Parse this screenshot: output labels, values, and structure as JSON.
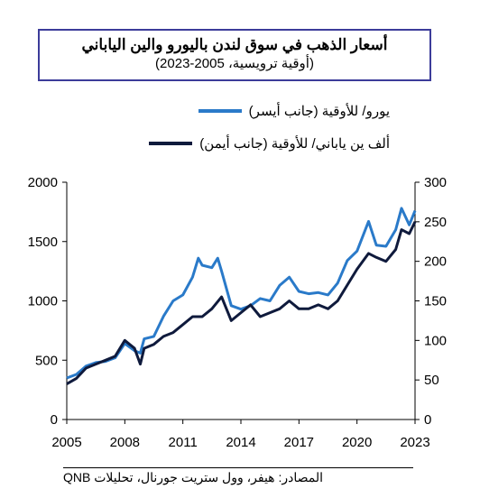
{
  "chart_data": {
    "type": "line",
    "title": "أسعار الذهب في سوق لندن باليورو والين الياباني",
    "subtitle": "(أوقية ترويسية، 2005-2023)",
    "x_ticks": [
      "2005",
      "2008",
      "2011",
      "2014",
      "2017",
      "2020",
      "2023"
    ],
    "xlim": [
      2005,
      2023
    ],
    "y_left": {
      "ticks": [
        0,
        500,
        1000,
        1500,
        2000
      ],
      "ylim": [
        0,
        2000
      ]
    },
    "y_right": {
      "ticks": [
        0,
        50,
        100,
        150,
        200,
        250,
        300
      ],
      "ylim": [
        0,
        300
      ]
    },
    "grid": false,
    "legend_position": "top",
    "series": [
      {
        "name": "يورو/ للأوقية (جانب أيسر)",
        "axis": "left",
        "color": "#2a7ac9",
        "x": [
          2005,
          2005.5,
          2006,
          2006.5,
          2007,
          2007.5,
          2008,
          2008.5,
          2008.8,
          2009,
          2009.5,
          2010,
          2010.5,
          2011,
          2011.5,
          2011.8,
          2012,
          2012.5,
          2012.8,
          2013,
          2013.5,
          2014,
          2014.5,
          2015,
          2015.5,
          2016,
          2016.5,
          2017,
          2017.5,
          2018,
          2018.5,
          2019,
          2019.5,
          2020,
          2020.6,
          2021,
          2021.5,
          2022,
          2022.3,
          2022.7,
          2023
        ],
        "y": [
          350,
          380,
          450,
          480,
          490,
          520,
          640,
          580,
          560,
          680,
          700,
          870,
          1000,
          1050,
          1200,
          1360,
          1300,
          1280,
          1360,
          1250,
          960,
          930,
          960,
          1020,
          1000,
          1130,
          1200,
          1080,
          1060,
          1070,
          1050,
          1150,
          1340,
          1420,
          1670,
          1470,
          1460,
          1600,
          1780,
          1640,
          1760
        ]
      },
      {
        "name": "ألف ين ياباني/ للأوقية (جانب أيمن)",
        "axis": "right",
        "color": "#0f1a3c",
        "x": [
          2005,
          2005.5,
          2006,
          2006.5,
          2007,
          2007.5,
          2008,
          2008.5,
          2008.8,
          2009,
          2009.5,
          2010,
          2010.5,
          2011,
          2011.5,
          2012,
          2012.5,
          2013,
          2013.5,
          2014,
          2014.5,
          2015,
          2015.5,
          2016,
          2016.5,
          2017,
          2017.5,
          2018,
          2018.5,
          2019,
          2019.5,
          2020,
          2020.6,
          2021,
          2021.5,
          2022,
          2022.3,
          2022.7,
          2023
        ],
        "y": [
          45,
          52,
          65,
          70,
          75,
          80,
          100,
          90,
          70,
          90,
          95,
          105,
          110,
          120,
          130,
          130,
          140,
          155,
          125,
          135,
          145,
          130,
          135,
          140,
          150,
          140,
          140,
          145,
          140,
          150,
          170,
          190,
          210,
          205,
          200,
          215,
          240,
          235,
          250
        ]
      }
    ]
  },
  "source": "المصادر: هيفر، وول ستريت جورنال، تحليلات QNB"
}
